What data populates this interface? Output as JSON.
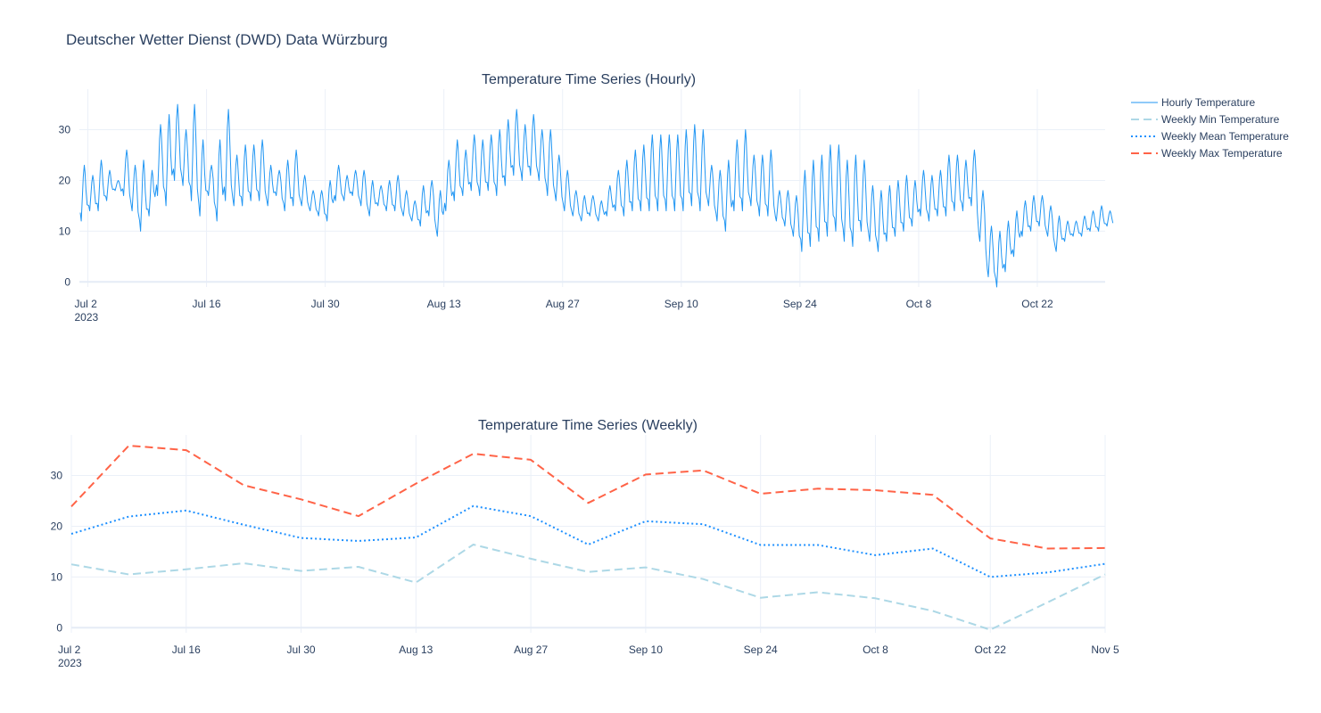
{
  "title": "Deutscher Wetter Dienst (DWD) Data Würzburg",
  "colors": {
    "hourly": "#2196f3",
    "weekly_min": "#add8e6",
    "weekly_mean": "#1e90ff",
    "weekly_max": "#ff6347",
    "grid": "#ebf0f8",
    "zeroline": "#e5ecf6",
    "text": "#2a3f5f"
  },
  "legend": {
    "placement": "top-right",
    "items": [
      {
        "label": "Hourly Temperature",
        "style": "solid",
        "color": "#2196f3"
      },
      {
        "label": "Weekly Min Temperature",
        "style": "dash",
        "color": "#add8e6"
      },
      {
        "label": "Weekly Mean Temperature",
        "style": "dot",
        "color": "#1e90ff"
      },
      {
        "label": "Weekly Max Temperature",
        "style": "dash",
        "color": "#ff6347"
      }
    ]
  },
  "chart_data": [
    {
      "type": "line",
      "title": "Temperature Time Series (Hourly)",
      "xlabel": "",
      "ylabel": "",
      "x_range": [
        "2023-07-01",
        "2023-10-30"
      ],
      "ylim": [
        -1,
        38
      ],
      "grid": true,
      "x_ticks": [
        {
          "date": "2023-07-02",
          "label": "Jul 2",
          "sublabel": "2023"
        },
        {
          "date": "2023-07-16",
          "label": "Jul 16",
          "sublabel": ""
        },
        {
          "date": "2023-07-30",
          "label": "Jul 30",
          "sublabel": ""
        },
        {
          "date": "2023-08-13",
          "label": "Aug 13",
          "sublabel": ""
        },
        {
          "date": "2023-08-27",
          "label": "Aug 27",
          "sublabel": ""
        },
        {
          "date": "2023-09-10",
          "label": "Sep 10",
          "sublabel": ""
        },
        {
          "date": "2023-09-24",
          "label": "Sep 24",
          "sublabel": ""
        },
        {
          "date": "2023-10-08",
          "label": "Oct 8",
          "sublabel": ""
        },
        {
          "date": "2023-10-22",
          "label": "Oct 22",
          "sublabel": ""
        }
      ],
      "y_ticks": [
        0,
        10,
        20,
        30
      ],
      "series": [
        {
          "name": "Hourly Temperature",
          "resolution": "daily min/max envelope of hourly readings",
          "points": [
            {
              "date": "2023-07-01",
              "min": 12,
              "max": 23
            },
            {
              "date": "2023-07-02",
              "min": 14,
              "max": 21
            },
            {
              "date": "2023-07-03",
              "min": 14,
              "max": 24
            },
            {
              "date": "2023-07-04",
              "min": 16,
              "max": 22
            },
            {
              "date": "2023-07-05",
              "min": 18,
              "max": 20
            },
            {
              "date": "2023-07-06",
              "min": 17,
              "max": 26
            },
            {
              "date": "2023-07-07",
              "min": 14,
              "max": 23
            },
            {
              "date": "2023-07-08",
              "min": 10,
              "max": 24
            },
            {
              "date": "2023-07-09",
              "min": 13,
              "max": 22
            },
            {
              "date": "2023-07-10",
              "min": 17,
              "max": 31
            },
            {
              "date": "2023-07-11",
              "min": 15,
              "max": 33
            },
            {
              "date": "2023-07-12",
              "min": 20,
              "max": 35
            },
            {
              "date": "2023-07-13",
              "min": 19,
              "max": 30
            },
            {
              "date": "2023-07-14",
              "min": 16,
              "max": 35
            },
            {
              "date": "2023-07-15",
              "min": 13,
              "max": 28
            },
            {
              "date": "2023-07-16",
              "min": 17,
              "max": 23
            },
            {
              "date": "2023-07-17",
              "min": 12,
              "max": 28
            },
            {
              "date": "2023-07-18",
              "min": 16,
              "max": 34
            },
            {
              "date": "2023-07-19",
              "min": 15,
              "max": 25
            },
            {
              "date": "2023-07-20",
              "min": 15,
              "max": 27
            },
            {
              "date": "2023-07-21",
              "min": 16,
              "max": 27
            },
            {
              "date": "2023-07-22",
              "min": 16,
              "max": 28
            },
            {
              "date": "2023-07-23",
              "min": 15,
              "max": 23
            },
            {
              "date": "2023-07-24",
              "min": 17,
              "max": 22
            },
            {
              "date": "2023-07-25",
              "min": 14,
              "max": 24
            },
            {
              "date": "2023-07-26",
              "min": 15,
              "max": 26
            },
            {
              "date": "2023-07-27",
              "min": 15,
              "max": 21
            },
            {
              "date": "2023-07-28",
              "min": 14,
              "max": 18
            },
            {
              "date": "2023-07-29",
              "min": 13,
              "max": 18
            },
            {
              "date": "2023-07-30",
              "min": 12,
              "max": 20
            },
            {
              "date": "2023-07-31",
              "min": 16,
              "max": 23
            },
            {
              "date": "2023-08-01",
              "min": 16,
              "max": 21
            },
            {
              "date": "2023-08-02",
              "min": 17,
              "max": 22
            },
            {
              "date": "2023-08-03",
              "min": 15,
              "max": 22
            },
            {
              "date": "2023-08-04",
              "min": 13,
              "max": 20
            },
            {
              "date": "2023-08-05",
              "min": 15,
              "max": 19
            },
            {
              "date": "2023-08-06",
              "min": 14,
              "max": 20
            },
            {
              "date": "2023-08-07",
              "min": 14,
              "max": 21
            },
            {
              "date": "2023-08-08",
              "min": 13,
              "max": 18
            },
            {
              "date": "2023-08-09",
              "min": 12,
              "max": 16
            },
            {
              "date": "2023-08-10",
              "min": 11,
              "max": 19
            },
            {
              "date": "2023-08-11",
              "min": 13,
              "max": 20
            },
            {
              "date": "2023-08-12",
              "min": 9,
              "max": 18
            },
            {
              "date": "2023-08-13",
              "min": 14,
              "max": 24
            },
            {
              "date": "2023-08-14",
              "min": 16,
              "max": 28
            },
            {
              "date": "2023-08-15",
              "min": 17,
              "max": 26
            },
            {
              "date": "2023-08-16",
              "min": 18,
              "max": 29
            },
            {
              "date": "2023-08-17",
              "min": 17,
              "max": 28
            },
            {
              "date": "2023-08-18",
              "min": 18,
              "max": 29
            },
            {
              "date": "2023-08-19",
              "min": 17,
              "max": 30
            },
            {
              "date": "2023-08-20",
              "min": 19,
              "max": 32
            },
            {
              "date": "2023-08-21",
              "min": 21,
              "max": 34
            },
            {
              "date": "2023-08-22",
              "min": 20,
              "max": 31
            },
            {
              "date": "2023-08-23",
              "min": 21,
              "max": 33
            },
            {
              "date": "2023-08-24",
              "min": 20,
              "max": 30
            },
            {
              "date": "2023-08-25",
              "min": 17,
              "max": 30
            },
            {
              "date": "2023-08-26",
              "min": 16,
              "max": 25
            },
            {
              "date": "2023-08-27",
              "min": 14,
              "max": 22
            },
            {
              "date": "2023-08-28",
              "min": 13,
              "max": 18
            },
            {
              "date": "2023-08-29",
              "min": 12,
              "max": 17
            },
            {
              "date": "2023-08-30",
              "min": 13,
              "max": 17
            },
            {
              "date": "2023-08-31",
              "min": 12,
              "max": 16
            },
            {
              "date": "2023-09-01",
              "min": 13,
              "max": 19
            },
            {
              "date": "2023-09-02",
              "min": 14,
              "max": 22
            },
            {
              "date": "2023-09-03",
              "min": 13,
              "max": 24
            },
            {
              "date": "2023-09-04",
              "min": 14,
              "max": 26
            },
            {
              "date": "2023-09-05",
              "min": 14,
              "max": 27
            },
            {
              "date": "2023-09-06",
              "min": 14,
              "max": 29
            },
            {
              "date": "2023-09-07",
              "min": 14,
              "max": 29
            },
            {
              "date": "2023-09-08",
              "min": 14,
              "max": 29
            },
            {
              "date": "2023-09-09",
              "min": 14,
              "max": 29
            },
            {
              "date": "2023-09-10",
              "min": 14,
              "max": 30
            },
            {
              "date": "2023-09-11",
              "min": 15,
              "max": 31
            },
            {
              "date": "2023-09-12",
              "min": 14,
              "max": 30
            },
            {
              "date": "2023-09-13",
              "min": 15,
              "max": 23
            },
            {
              "date": "2023-09-14",
              "min": 12,
              "max": 22
            },
            {
              "date": "2023-09-15",
              "min": 10,
              "max": 24
            },
            {
              "date": "2023-09-16",
              "min": 14,
              "max": 28
            },
            {
              "date": "2023-09-17",
              "min": 14,
              "max": 30
            },
            {
              "date": "2023-09-18",
              "min": 15,
              "max": 25
            },
            {
              "date": "2023-09-19",
              "min": 13,
              "max": 25
            },
            {
              "date": "2023-09-20",
              "min": 13,
              "max": 26
            },
            {
              "date": "2023-09-21",
              "min": 12,
              "max": 18
            },
            {
              "date": "2023-09-22",
              "min": 11,
              "max": 18
            },
            {
              "date": "2023-09-23",
              "min": 9,
              "max": 17
            },
            {
              "date": "2023-09-24",
              "min": 6,
              "max": 22
            },
            {
              "date": "2023-09-25",
              "min": 7,
              "max": 24
            },
            {
              "date": "2023-09-26",
              "min": 8,
              "max": 25
            },
            {
              "date": "2023-09-27",
              "min": 9,
              "max": 27
            },
            {
              "date": "2023-09-28",
              "min": 10,
              "max": 27
            },
            {
              "date": "2023-09-29",
              "min": 8,
              "max": 24
            },
            {
              "date": "2023-09-30",
              "min": 7,
              "max": 25
            },
            {
              "date": "2023-10-01",
              "min": 10,
              "max": 24
            },
            {
              "date": "2023-10-02",
              "min": 8,
              "max": 19
            },
            {
              "date": "2023-10-03",
              "min": 6,
              "max": 18
            },
            {
              "date": "2023-10-04",
              "min": 8,
              "max": 19
            },
            {
              "date": "2023-10-05",
              "min": 9,
              "max": 20
            },
            {
              "date": "2023-10-06",
              "min": 10,
              "max": 21
            },
            {
              "date": "2023-10-07",
              "min": 11,
              "max": 20
            },
            {
              "date": "2023-10-08",
              "min": 13,
              "max": 22
            },
            {
              "date": "2023-10-09",
              "min": 12,
              "max": 21
            },
            {
              "date": "2023-10-10",
              "min": 13,
              "max": 22
            },
            {
              "date": "2023-10-11",
              "min": 13,
              "max": 25
            },
            {
              "date": "2023-10-12",
              "min": 14,
              "max": 25
            },
            {
              "date": "2023-10-13",
              "min": 14,
              "max": 24
            },
            {
              "date": "2023-10-14",
              "min": 15,
              "max": 26
            },
            {
              "date": "2023-10-15",
              "min": 8,
              "max": 18
            },
            {
              "date": "2023-10-16",
              "min": 1,
              "max": 11
            },
            {
              "date": "2023-10-17",
              "min": -1,
              "max": 10
            },
            {
              "date": "2023-10-18",
              "min": 2,
              "max": 12
            },
            {
              "date": "2023-10-19",
              "min": 5,
              "max": 14
            },
            {
              "date": "2023-10-20",
              "min": 9,
              "max": 16
            },
            {
              "date": "2023-10-21",
              "min": 10,
              "max": 17
            },
            {
              "date": "2023-10-22",
              "min": 11,
              "max": 17
            },
            {
              "date": "2023-10-23",
              "min": 9,
              "max": 15
            },
            {
              "date": "2023-10-24",
              "min": 6,
              "max": 13
            },
            {
              "date": "2023-10-25",
              "min": 8,
              "max": 12
            },
            {
              "date": "2023-10-26",
              "min": 9,
              "max": 12
            },
            {
              "date": "2023-10-27",
              "min": 9,
              "max": 13
            },
            {
              "date": "2023-10-28",
              "min": 10,
              "max": 14
            },
            {
              "date": "2023-10-29",
              "min": 10,
              "max": 15
            },
            {
              "date": "2023-10-30",
              "min": 11,
              "max": 14
            }
          ]
        }
      ]
    },
    {
      "type": "line",
      "title": "Temperature Time Series (Weekly)",
      "xlabel": "",
      "ylabel": "",
      "x_range": [
        "2023-07-02",
        "2023-11-05"
      ],
      "ylim": [
        -1,
        38
      ],
      "grid": true,
      "x_ticks": [
        {
          "date": "2023-07-02",
          "label": "Jul 2",
          "sublabel": "2023"
        },
        {
          "date": "2023-07-16",
          "label": "Jul 16",
          "sublabel": ""
        },
        {
          "date": "2023-07-30",
          "label": "Jul 30",
          "sublabel": ""
        },
        {
          "date": "2023-08-13",
          "label": "Aug 13",
          "sublabel": ""
        },
        {
          "date": "2023-08-27",
          "label": "Aug 27",
          "sublabel": ""
        },
        {
          "date": "2023-09-10",
          "label": "Sep 10",
          "sublabel": ""
        },
        {
          "date": "2023-09-24",
          "label": "Sep 24",
          "sublabel": ""
        },
        {
          "date": "2023-10-08",
          "label": "Oct 8",
          "sublabel": ""
        },
        {
          "date": "2023-10-22",
          "label": "Oct 22",
          "sublabel": ""
        },
        {
          "date": "2023-11-05",
          "label": "Nov 5",
          "sublabel": ""
        }
      ],
      "y_ticks": [
        0,
        10,
        20,
        30
      ],
      "x": [
        "2023-07-02",
        "2023-07-09",
        "2023-07-16",
        "2023-07-23",
        "2023-07-30",
        "2023-08-06",
        "2023-08-13",
        "2023-08-20",
        "2023-08-27",
        "2023-09-03",
        "2023-09-10",
        "2023-09-17",
        "2023-09-24",
        "2023-10-01",
        "2023-10-08",
        "2023-10-15",
        "2023-10-22",
        "2023-10-29",
        "2023-11-05"
      ],
      "series": [
        {
          "name": "Weekly Min Temperature",
          "values": [
            12.5,
            10.5,
            11.5,
            12.7,
            11.2,
            12.0,
            8.9,
            16.4,
            13.6,
            11.0,
            11.9,
            9.6,
            5.9,
            7.0,
            5.8,
            3.3,
            -0.4,
            5.0,
            10.5
          ]
        },
        {
          "name": "Weekly Mean Temperature",
          "values": [
            18.5,
            21.9,
            23.1,
            20.3,
            17.7,
            17.1,
            17.8,
            24.0,
            22.0,
            16.4,
            21.0,
            20.4,
            16.3,
            16.3,
            14.3,
            15.6,
            10.0,
            10.9,
            12.6
          ]
        },
        {
          "name": "Weekly Max Temperature",
          "values": [
            23.9,
            35.9,
            35.0,
            28.1,
            25.3,
            22.0,
            28.4,
            34.3,
            33.1,
            24.6,
            30.2,
            31.0,
            26.4,
            27.4,
            27.1,
            26.2,
            17.6,
            15.6,
            15.7
          ]
        }
      ]
    }
  ]
}
